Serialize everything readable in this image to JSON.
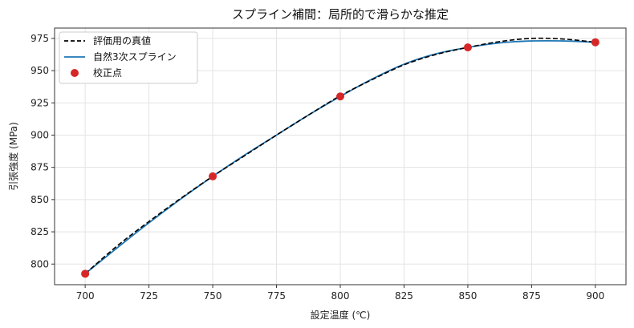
{
  "chart_data": {
    "type": "line",
    "title": "スプライン補間：局所的で滑らかな推定",
    "xlabel": "設定温度 (℃)",
    "ylabel": "引張強度 (MPa)",
    "xlim": [
      688,
      912
    ],
    "ylim": [
      784,
      983
    ],
    "x_ticks": [
      700,
      725,
      750,
      775,
      800,
      825,
      850,
      875,
      900
    ],
    "y_ticks": [
      800,
      825,
      850,
      875,
      900,
      925,
      950,
      975
    ],
    "grid": true,
    "legend_position": "top-left",
    "series": [
      {
        "name": "評価用の真値",
        "kind": "line",
        "style": "dashed",
        "color": "#000000",
        "x": [
          700,
          712.5,
          725,
          737.5,
          750,
          762.5,
          775,
          787.5,
          800,
          812.5,
          825,
          837.5,
          850,
          862.5,
          875,
          887.5,
          900
        ],
        "y": [
          792.5,
          814.0,
          833.0,
          851.0,
          868.0,
          884.0,
          900.0,
          915.5,
          930.5,
          943.0,
          954.5,
          962.5,
          968.0,
          972.5,
          975.0,
          974.5,
          972.0
        ]
      },
      {
        "name": "自然3次スプライン",
        "kind": "line",
        "style": "solid",
        "color": "#1f77b4",
        "x": [
          700,
          712.5,
          725,
          737.5,
          750,
          762.5,
          775,
          787.5,
          800,
          812.5,
          825,
          837.5,
          850,
          862.5,
          875,
          887.5,
          900
        ],
        "y": [
          792.5,
          812.5,
          832.0,
          850.5,
          868.0,
          884.5,
          900.0,
          915.5,
          930.0,
          943.5,
          955.0,
          963.0,
          968.0,
          971.5,
          973.0,
          973.0,
          972.0
        ]
      },
      {
        "name": "校正点",
        "kind": "scatter",
        "color": "#d62728",
        "x": [
          700,
          750,
          800,
          850,
          900
        ],
        "y": [
          792.5,
          868.0,
          930.0,
          968.0,
          972.0
        ]
      }
    ]
  }
}
